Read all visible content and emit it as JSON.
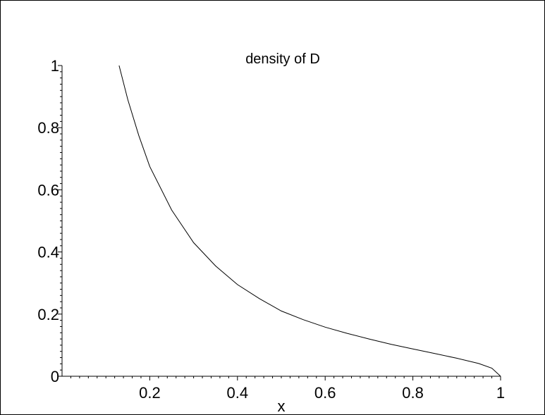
{
  "chart_data": {
    "type": "line",
    "title": "density of D",
    "xlabel": "x",
    "ylabel": "",
    "xlim": [
      0,
      1
    ],
    "ylim": [
      0,
      1
    ],
    "grid": false,
    "x_ticks": [
      0.2,
      0.4,
      0.6,
      0.8,
      1
    ],
    "x_tick_labels": [
      "0.2",
      "0.4",
      "0.6",
      "0.8",
      "1"
    ],
    "y_ticks": [
      0,
      0.2,
      0.4,
      0.6,
      0.8,
      1
    ],
    "y_tick_labels": [
      "0",
      "0.2",
      "0.4",
      "0.6",
      "0.8",
      "1"
    ],
    "series": [
      {
        "x": [
          0.13,
          0.15,
          0.175,
          0.2,
          0.25,
          0.3,
          0.35,
          0.4,
          0.45,
          0.5,
          0.55,
          0.6,
          0.65,
          0.7,
          0.75,
          0.8,
          0.85,
          0.9,
          0.95,
          0.98,
          1.0
        ],
        "y": [
          1.0,
          0.89,
          0.775,
          0.675,
          0.535,
          0.43,
          0.355,
          0.295,
          0.25,
          0.21,
          0.182,
          0.158,
          0.138,
          0.12,
          0.103,
          0.088,
          0.073,
          0.058,
          0.041,
          0.026,
          0.0
        ]
      }
    ],
    "colors": {
      "line": "#000000",
      "axis": "#000000",
      "background": "#ffffff"
    }
  }
}
